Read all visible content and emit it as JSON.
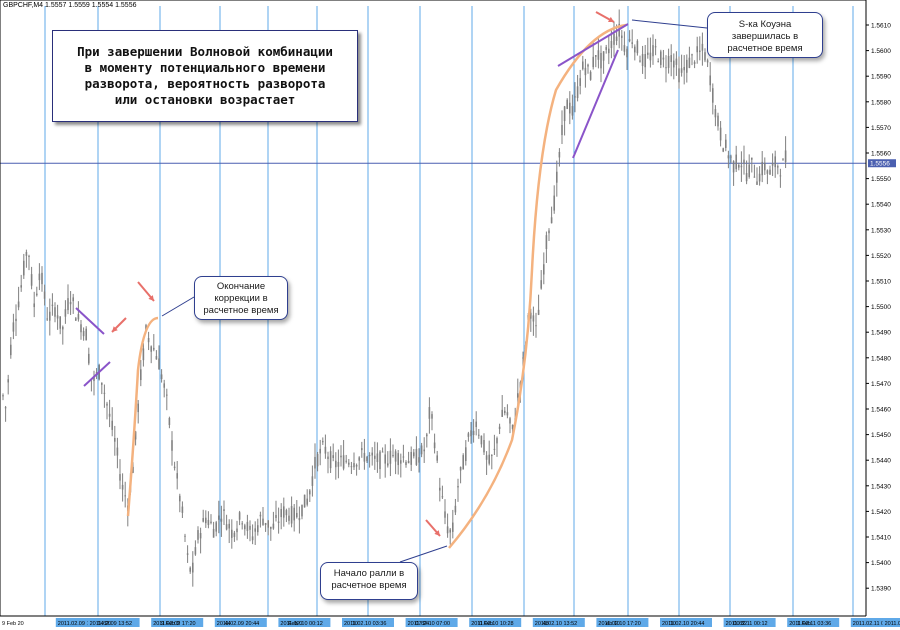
{
  "symbol_info": "GBPCHF,M4  1.5557 1.5559 1.5554 1.5556",
  "main_annotation": "При завершении Волновой комбинации\nв моменту потенциального времени\nразворота, вероятность разворота\nили остановки возрастает",
  "callouts": {
    "correction": "Окончание\nкоррекции в\nрасчетное время",
    "wave_end": "S-ка Коуэна\nзавершилась в\nрасчетное время",
    "rally_start": "Начало ралли в\nрасчетное время"
  },
  "colors": {
    "candles": "#808080",
    "time_lines": "#5fa9e8",
    "price_level": "#4a5fb0",
    "arc": "#f4b27f",
    "trend_lines": "#8a54c9",
    "arrows": "#e8706a",
    "callout_border": "#2f3f8f"
  },
  "chart_data": {
    "type": "candlestick",
    "symbol": "GBPCHF",
    "timeframe": "M4",
    "ylim": [
      1.5385,
      1.5615
    ],
    "y_ticks": [
      "1.5610",
      "1.5600",
      "1.5590",
      "1.5580",
      "1.5570",
      "1.5560",
      "1.5550",
      "1.5540",
      "1.5530",
      "1.5520",
      "1.5510",
      "1.5500",
      "1.5490",
      "1.5480",
      "1.5470",
      "1.5460",
      "1.5450",
      "1.5440",
      "1.5430",
      "1.5420",
      "1.5410",
      "1.5400",
      "1.5390"
    ],
    "current_price": "1.5556",
    "x_labels": [
      "9 Feb 20",
      "2011.02.09 10:28",
      "2011.02.09 13:52",
      "14:20",
      "2011.02.09 17:20",
      "9 Feb 2",
      "2011.02.09 20:44",
      "44",
      "2011.02.10 00:12",
      "Feb 0",
      "2011.02.10 03:36",
      "10",
      "2011.02.10 07:00",
      "07:24",
      "2011.02.10 10:28",
      "0 Feb",
      "2011.02.10 13:52",
      "48",
      "2011.02.10 17:20",
      "eb 10",
      "2011.02.10 20:44",
      "10",
      "2011.02.11 00:12",
      "00:32",
      "2011.02.11 03:36",
      "1 Feb",
      "2011.02.11 07:04",
      "2011.02.11 10:28"
    ],
    "anchors": [
      [
        0,
        1.547
      ],
      [
        6,
        1.546
      ],
      [
        12,
        1.549
      ],
      [
        20,
        1.5505
      ],
      [
        28,
        1.5525
      ],
      [
        34,
        1.55
      ],
      [
        40,
        1.5515
      ],
      [
        48,
        1.5495
      ],
      [
        56,
        1.55
      ],
      [
        62,
        1.549
      ],
      [
        70,
        1.5505
      ],
      [
        78,
        1.5495
      ],
      [
        86,
        1.549
      ],
      [
        92,
        1.547
      ],
      [
        100,
        1.5475
      ],
      [
        108,
        1.546
      ],
      [
        116,
        1.5445
      ],
      [
        122,
        1.543
      ],
      [
        128,
        1.5423
      ],
      [
        134,
        1.544
      ],
      [
        140,
        1.547
      ],
      [
        146,
        1.549
      ],
      [
        152,
        1.5485
      ],
      [
        158,
        1.548
      ],
      [
        166,
        1.5465
      ],
      [
        174,
        1.544
      ],
      [
        182,
        1.542
      ],
      [
        188,
        1.54
      ],
      [
        192,
        1.5395
      ],
      [
        198,
        1.541
      ],
      [
        206,
        1.5418
      ],
      [
        214,
        1.5413
      ],
      [
        222,
        1.542
      ],
      [
        232,
        1.5412
      ],
      [
        242,
        1.5418
      ],
      [
        252,
        1.541
      ],
      [
        262,
        1.5418
      ],
      [
        272,
        1.5413
      ],
      [
        284,
        1.542
      ],
      [
        296,
        1.5418
      ],
      [
        308,
        1.5425
      ],
      [
        316,
        1.544
      ],
      [
        324,
        1.5445
      ],
      [
        334,
        1.5438
      ],
      [
        344,
        1.544
      ],
      [
        354,
        1.544
      ],
      [
        364,
        1.5442
      ],
      [
        374,
        1.544
      ],
      [
        384,
        1.544
      ],
      [
        394,
        1.5442
      ],
      [
        404,
        1.5441
      ],
      [
        412,
        1.544
      ],
      [
        420,
        1.5442
      ],
      [
        426,
        1.5445
      ],
      [
        430,
        1.546
      ],
      [
        434,
        1.545
      ],
      [
        440,
        1.543
      ],
      [
        446,
        1.5415
      ],
      [
        452,
        1.541
      ],
      [
        458,
        1.543
      ],
      [
        464,
        1.544
      ],
      [
        470,
        1.545
      ],
      [
        476,
        1.5455
      ],
      [
        482,
        1.5448
      ],
      [
        488,
        1.5438
      ],
      [
        494,
        1.5442
      ],
      [
        500,
        1.5455
      ],
      [
        506,
        1.546
      ],
      [
        512,
        1.545
      ],
      [
        518,
        1.5465
      ],
      [
        524,
        1.548
      ],
      [
        530,
        1.55
      ],
      [
        536,
        1.549
      ],
      [
        542,
        1.551
      ],
      [
        548,
        1.553
      ],
      [
        554,
        1.554
      ],
      [
        560,
        1.556
      ],
      [
        564,
        1.5575
      ],
      [
        568,
        1.558
      ],
      [
        572,
        1.5575
      ],
      [
        578,
        1.5585
      ],
      [
        584,
        1.5595
      ],
      [
        590,
        1.559
      ],
      [
        596,
        1.56
      ],
      [
        602,
        1.5595
      ],
      [
        608,
        1.56
      ],
      [
        614,
        1.5605
      ],
      [
        620,
        1.5608
      ],
      [
        626,
        1.56
      ],
      [
        632,
        1.5605
      ],
      [
        638,
        1.56
      ],
      [
        644,
        1.5595
      ],
      [
        650,
        1.5598
      ],
      [
        656,
        1.56
      ],
      [
        664,
        1.5595
      ],
      [
        672,
        1.5598
      ],
      [
        680,
        1.559
      ],
      [
        688,
        1.5595
      ],
      [
        696,
        1.5598
      ],
      [
        704,
        1.56
      ],
      [
        710,
        1.559
      ],
      [
        716,
        1.5575
      ],
      [
        722,
        1.5565
      ],
      [
        728,
        1.556
      ],
      [
        734,
        1.5555
      ],
      [
        740,
        1.5558
      ],
      [
        746,
        1.5552
      ],
      [
        752,
        1.5555
      ],
      [
        758,
        1.555
      ],
      [
        764,
        1.5555
      ],
      [
        770,
        1.5552
      ],
      [
        776,
        1.5556
      ],
      [
        782,
        1.5554
      ],
      [
        786,
        1.5558
      ]
    ]
  }
}
